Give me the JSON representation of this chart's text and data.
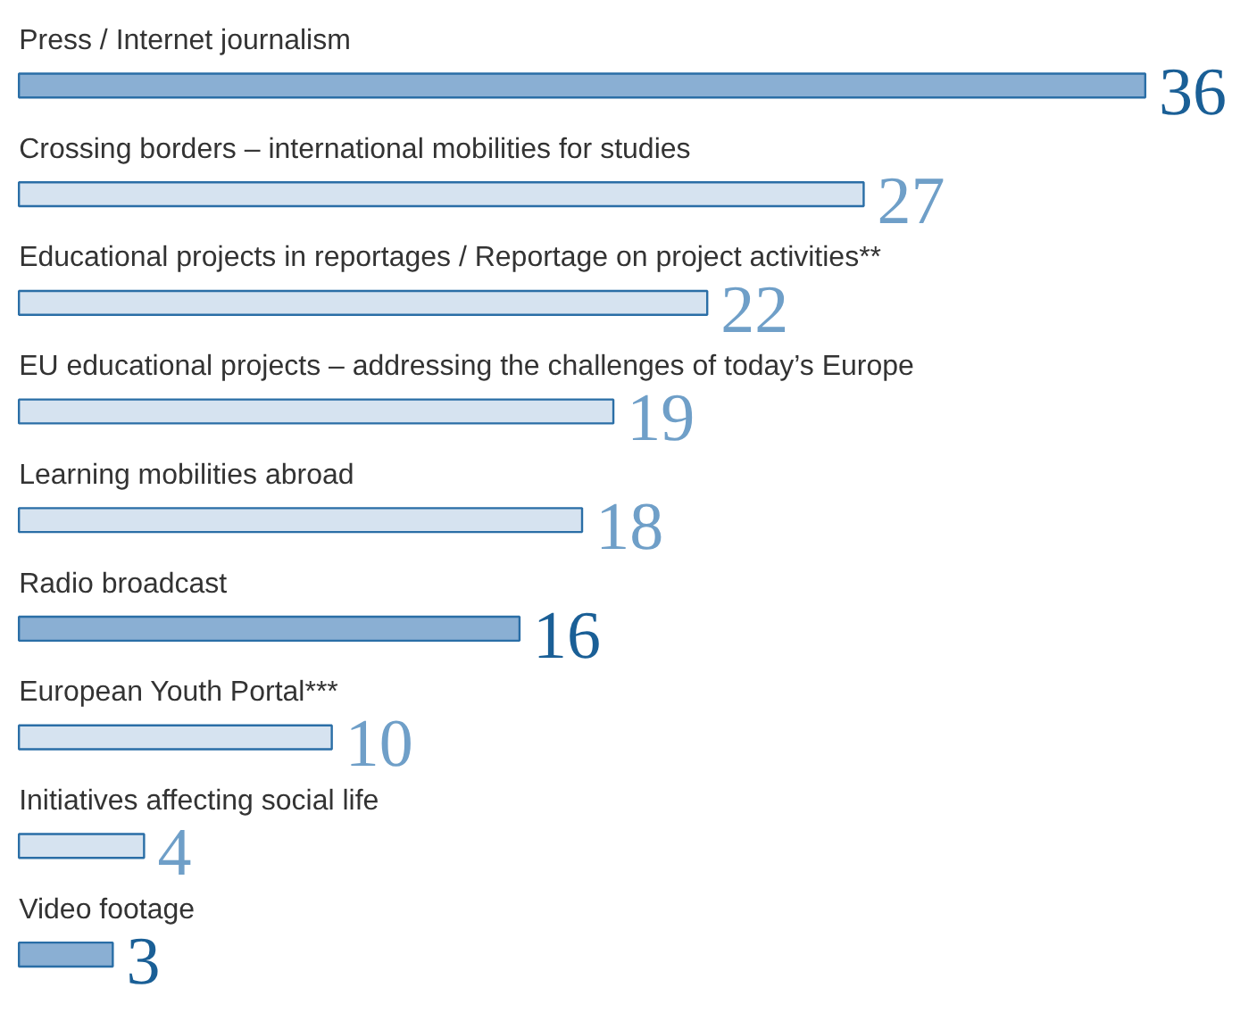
{
  "chart_data": {
    "type": "bar",
    "orientation": "horizontal",
    "data_labels": true,
    "categories": [
      "Press / Internet journalism",
      "Crossing borders – international mobilities for studies",
      "Educational projects in reportages / Reportage on project activities**",
      "EU educational projects – addressing the challenges of today’s Europe",
      "Learning mobilities abroad",
      "Radio broadcast",
      "European Youth Portal***",
      "Initiatives affecting social life",
      "Video footage"
    ],
    "values": [
      36,
      27,
      22,
      19,
      18,
      16,
      10,
      4,
      3
    ],
    "colors": [
      "#8aafd3",
      "#d6e3f0",
      "#d6e3f0",
      "#d6e3f0",
      "#d6e3f0",
      "#8aafd3",
      "#d6e3f0",
      "#d6e3f0",
      "#8aafd3"
    ],
    "grid": false,
    "tick_labels": false
  }
}
